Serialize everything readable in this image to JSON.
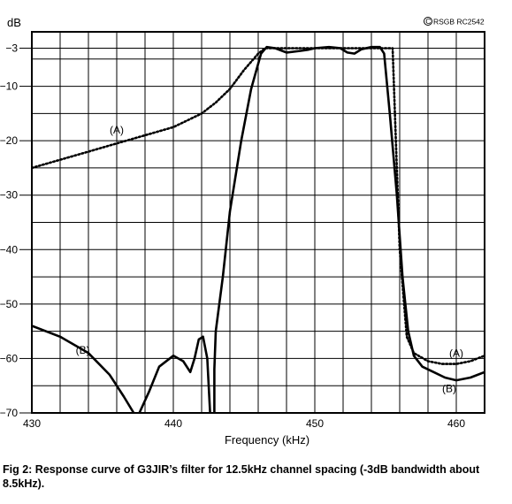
{
  "chart_data": {
    "type": "line",
    "title": "",
    "xlabel": "Frequency (kHz)",
    "ylabel": "dB",
    "xlim": [
      430,
      462
    ],
    "ylim": [
      -70,
      0
    ],
    "y_log_display": false,
    "x_ticks": [
      430,
      440,
      450,
      460
    ],
    "y_ticks": [
      -3,
      -10,
      -20,
      -30,
      -40,
      -50,
      -60,
      -70
    ],
    "y_tick_labels": [
      "−3",
      "−10",
      "−20",
      "−30",
      "−40",
      "−50",
      "−60",
      "−70"
    ],
    "x_tick_labels": [
      "430",
      "440",
      "450",
      "460"
    ],
    "grid": true,
    "x_minor_step": 2,
    "copyright": "RSGB RC2542",
    "series": [
      {
        "name": "(A)",
        "style": "dotted",
        "label_anchor": [
          436,
          -18
        ],
        "label_anchor_2": [
          460,
          -59
        ],
        "points": [
          [
            430,
            -25
          ],
          [
            432,
            -23.5
          ],
          [
            434,
            -22
          ],
          [
            436,
            -20.5
          ],
          [
            438,
            -19
          ],
          [
            440,
            -17.5
          ],
          [
            442,
            -15
          ],
          [
            443,
            -13
          ],
          [
            444,
            -10.5
          ],
          [
            445,
            -7
          ],
          [
            445.5,
            -5.5
          ],
          [
            446,
            -4
          ],
          [
            446.5,
            -3
          ],
          [
            455.5,
            -3
          ],
          [
            456,
            -40
          ],
          [
            456.5,
            -56
          ],
          [
            457,
            -59
          ],
          [
            458,
            -60.5
          ],
          [
            459,
            -61
          ],
          [
            460,
            -61
          ],
          [
            461,
            -60.5
          ],
          [
            462,
            -59.5
          ]
        ]
      },
      {
        "name": "(B)",
        "style": "solid",
        "label_anchor": [
          433.6,
          -58.5
        ],
        "label_anchor_2": [
          459.5,
          -65.5
        ],
        "segments": [
          [
            [
              430,
              -54
            ],
            [
              432,
              -56
            ],
            [
              434,
              -59
            ],
            [
              435.5,
              -63
            ],
            [
              436.5,
              -67
            ],
            [
              437.2,
              -70
            ]
          ],
          [
            [
              437.6,
              -70
            ],
            [
              438.3,
              -66
            ],
            [
              439,
              -61.5
            ],
            [
              440,
              -59.5
            ],
            [
              440.7,
              -60.5
            ],
            [
              441.2,
              -62.5
            ],
            [
              441.5,
              -60
            ],
            [
              441.8,
              -56.5
            ],
            [
              442.1,
              -56
            ],
            [
              442.4,
              -60
            ],
            [
              442.6,
              -70
            ]
          ],
          [
            [
              442.9,
              -70
            ],
            [
              442.9,
              -62
            ],
            [
              443.0,
              -55
            ],
            [
              443.5,
              -45
            ],
            [
              444,
              -33
            ],
            [
              444.8,
              -20
            ],
            [
              445.5,
              -10.5
            ],
            [
              446.2,
              -4
            ],
            [
              446.6,
              -2.8
            ],
            [
              447.2,
              -3
            ],
            [
              448,
              -3.8
            ],
            [
              449,
              -3.5
            ],
            [
              449.5,
              -3.3
            ],
            [
              450,
              -3
            ],
            [
              451,
              -2.8
            ],
            [
              451.8,
              -3
            ],
            [
              452.3,
              -3.8
            ],
            [
              452.8,
              -4
            ],
            [
              453.3,
              -3.2
            ],
            [
              454,
              -2.8
            ],
            [
              454.6,
              -2.8
            ],
            [
              454.9,
              -4
            ],
            [
              455.3,
              -15
            ],
            [
              455.8,
              -30
            ],
            [
              456.2,
              -45
            ],
            [
              456.6,
              -55
            ],
            [
              457,
              -59.5
            ],
            [
              457.6,
              -61.5
            ],
            [
              458.4,
              -62.5
            ],
            [
              459.2,
              -63.5
            ],
            [
              460,
              -64
            ],
            [
              461,
              -63.5
            ],
            [
              462,
              -62.5
            ]
          ]
        ]
      }
    ]
  },
  "caption": "Fig 2: Response curve of G3JIR’s filter for 12.5kHz channel spacing (-3dB bandwidth about 8.5kHz)."
}
